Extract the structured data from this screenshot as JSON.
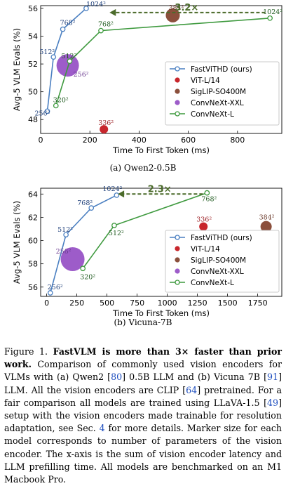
{
  "chart_data": [
    {
      "type": "scatter",
      "title": "(a) Qwen2-0.5B",
      "xlabel": "Time To First Token (ms)",
      "ylabel": "Avg-5 VLM Evals (%)",
      "xlim": [
        0,
        980
      ],
      "ylim": [
        47,
        56.2
      ],
      "xticks": [
        0,
        200,
        400,
        600,
        800
      ],
      "yticks": [
        48,
        50,
        52,
        54,
        56
      ],
      "ytick_labels": [
        "48",
        "50",
        "52",
        "54",
        "56"
      ],
      "legend": "right",
      "annotation": {
        "text": "3.2×",
        "from": [
          930,
          55.7
        ],
        "to": [
          280,
          55.7
        ]
      },
      "series": [
        {
          "name": "FastViTHD (ours)",
          "color": "#4a7fc1",
          "kind": "line-open",
          "points": [
            {
              "x": 27,
              "y": 48.6,
              "label": "256²"
            },
            {
              "x": 52,
              "y": 52.5,
              "label": "512²"
            },
            {
              "x": 90,
              "y": 54.5,
              "label": "768²"
            },
            {
              "x": 185,
              "y": 56.0,
              "label": "1024²"
            }
          ]
        },
        {
          "name": "ViT-L/14",
          "color": "#c8262c",
          "kind": "dot",
          "points": [
            {
              "x": 257,
              "y": 47.3,
              "label": "336²",
              "size": 6
            }
          ]
        },
        {
          "name": "SigLIP-SO400M",
          "color": "#8b4f3c",
          "kind": "dot",
          "points": [
            {
              "x": 537,
              "y": 55.5,
              "label": "384²",
              "size": 10
            }
          ]
        },
        {
          "name": "ConvNeXt-XXL",
          "color": "#9d5cc9",
          "kind": "dot",
          "points": [
            {
              "x": 110,
              "y": 51.9,
              "label": "256²",
              "size": 16
            }
          ]
        },
        {
          "name": "ConvNeXt-L",
          "color": "#3f9a3f",
          "kind": "line-open",
          "points": [
            {
              "x": 62,
              "y": 49.0,
              "label": "320²"
            },
            {
              "x": 118,
              "y": 52.2,
              "label": "512²"
            },
            {
              "x": 245,
              "y": 54.4,
              "label": "768²"
            },
            {
              "x": 932,
              "y": 55.3,
              "label": "1024²"
            }
          ]
        }
      ]
    },
    {
      "type": "scatter",
      "title": "(b) Vicuna-7B",
      "xlabel": "Time To First Token (ms)",
      "ylabel": "Avg-5 VLM Evals (%)",
      "xlim": [
        -50,
        1950
      ],
      "ylim": [
        55.2,
        64.5
      ],
      "xticks": [
        0,
        250,
        500,
        750,
        1000,
        1250,
        1500,
        1750
      ],
      "yticks": [
        56,
        58,
        60,
        62,
        64
      ],
      "ytick_labels": [
        "56",
        "58",
        "60",
        "62",
        "64"
      ],
      "legend": "right",
      "annotation": {
        "text": "2.3×",
        "from": [
          1330,
          64.0
        ],
        "to": [
          590,
          64.0
        ]
      },
      "series": [
        {
          "name": "FastViTHD (ours)",
          "color": "#4a7fc1",
          "kind": "line-open",
          "points": [
            {
              "x": 30,
              "y": 55.5,
              "label": "256²"
            },
            {
              "x": 160,
              "y": 60.5,
              "label": "512²"
            },
            {
              "x": 370,
              "y": 62.8,
              "label": "768²"
            },
            {
              "x": 580,
              "y": 63.9,
              "label": "1024²"
            }
          ]
        },
        {
          "name": "ViT-L/14",
          "color": "#c8262c",
          "kind": "dot",
          "points": [
            {
              "x": 1300,
              "y": 61.2,
              "label": "336²",
              "size": 6
            }
          ]
        },
        {
          "name": "SigLIP-SO400M",
          "color": "#8b4f3c",
          "kind": "dot",
          "points": [
            {
              "x": 1820,
              "y": 61.2,
              "label": "384²",
              "size": 8
            }
          ]
        },
        {
          "name": "ConvNeXt-XXL",
          "color": "#9d5cc9",
          "kind": "dot",
          "points": [
            {
              "x": 215,
              "y": 58.4,
              "label": "256²",
              "size": 17
            }
          ]
        },
        {
          "name": "ConvNeXt-L",
          "color": "#3f9a3f",
          "kind": "line-open",
          "points": [
            {
              "x": 300,
              "y": 57.6,
              "label": "320²"
            },
            {
              "x": 560,
              "y": 61.3,
              "label": "512²"
            },
            {
              "x": 1330,
              "y": 64.1,
              "label": "768²"
            }
          ]
        }
      ]
    }
  ],
  "caption": {
    "label": "Figure 1.",
    "bold": "FastVLM is more than 3× faster than prior work.",
    "parts": [
      {
        "t": " Comparison of commonly used vision encoders for VLMs with (a) Qwen2 [",
        "ref": false
      },
      {
        "t": "80",
        "ref": true
      },
      {
        "t": "] 0.5B LLM and (b) Vicuna 7B [",
        "ref": false
      },
      {
        "t": "91",
        "ref": true
      },
      {
        "t": "] LLM. All the vision encoders are CLIP [",
        "ref": false
      },
      {
        "t": "64",
        "ref": true
      },
      {
        "t": "] pretrained. For a fair comparison all models are trained using LLaVA-1.5 [",
        "ref": false
      },
      {
        "t": "49",
        "ref": true
      },
      {
        "t": "] setup with the vision encoders made trainable for resolution adaptation, see Sec. ",
        "ref": false
      },
      {
        "t": "4",
        "ref": true
      },
      {
        "t": " for more details. Marker size for each model corresponds to number of parameters of the vision encoder. The x-axis is the sum of vision encoder latency and LLM prefilling time. All models are benchmarked on an M1 Macbook Pro.",
        "ref": false
      }
    ]
  }
}
